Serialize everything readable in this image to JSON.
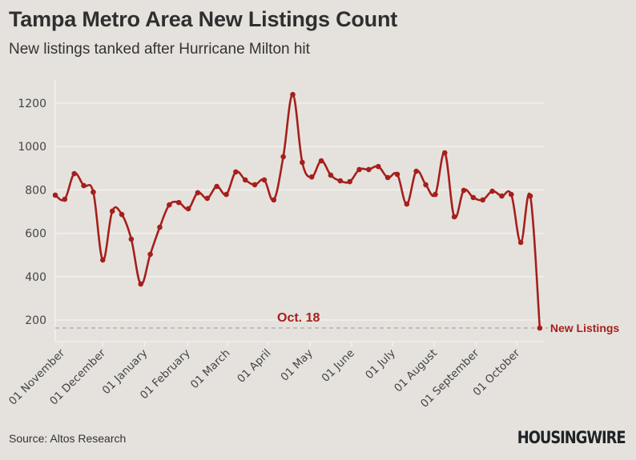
{
  "header": {
    "title": "Tampa Metro Area New Listings Count",
    "subtitle": "New listings tanked after Hurricane Milton hit"
  },
  "footer": {
    "source": "Source: Altos Research",
    "logo": "HOUSINGWIRE"
  },
  "colors": {
    "background": "#e5e2de",
    "line": "#a61f1b",
    "gridline": "#f2f0ed",
    "reference_line": "#9a9a9a",
    "text": "#333333"
  },
  "chart_data": {
    "type": "line",
    "title": "Tampa Metro Area New Listings Count",
    "subtitle": "New listings tanked after Hurricane Milton hit",
    "xlabel": "",
    "ylabel": "",
    "ylim": [
      100,
      1270
    ],
    "yticks": [
      200,
      400,
      600,
      800,
      1000,
      1200
    ],
    "grid": true,
    "x_frequency": "weekly",
    "x_start": "2023-10-27",
    "x_end": "2024-10-18",
    "xtick_labels": [
      "01 November",
      "01 December",
      "01 January",
      "01 February",
      "01 March",
      "01 April",
      "01 May",
      "01 June",
      "01 July",
      "01 August",
      "01 September",
      "01 October"
    ],
    "xtick_positions_week_index": [
      0.7,
      5.0,
      9.4,
      13.9,
      18.1,
      22.4,
      26.8,
      31.2,
      35.5,
      39.9,
      44.3,
      48.6
    ],
    "series": [
      {
        "name": "New Listings",
        "values": [
          776,
          757,
          875,
          820,
          790,
          477,
          702,
          687,
          573,
          366,
          503,
          628,
          731,
          742,
          713,
          787,
          761,
          816,
          779,
          883,
          846,
          824,
          846,
          754,
          953,
          1240,
          927,
          860,
          934,
          868,
          842,
          838,
          894,
          894,
          908,
          857,
          872,
          735,
          886,
          824,
          779,
          971,
          676,
          798,
          765,
          754,
          794,
          772,
          779,
          558,
          772,
          163
        ]
      }
    ],
    "reference_line": {
      "value": 163,
      "style": "dashed"
    },
    "annotations": [
      {
        "text": "Oct. 18",
        "target": "last point"
      },
      {
        "text": "New Listings",
        "target": "end label of series"
      }
    ],
    "legend": "none (direct label at line end)"
  }
}
